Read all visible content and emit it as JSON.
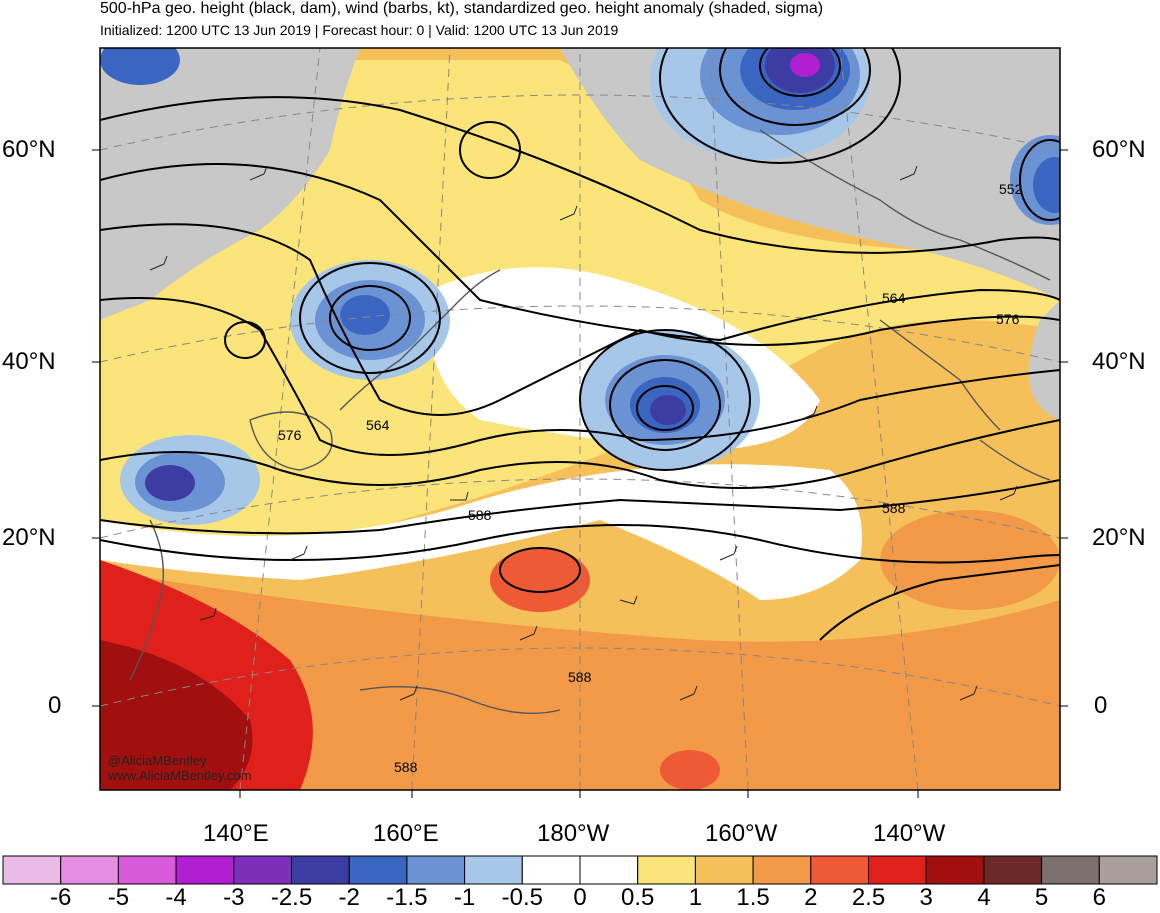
{
  "header": {
    "title": "500-hPa geo. height (black, dam), wind (barbs, kt), standardized geo. height anomaly (shaded, sigma)",
    "subtitle": "Initialized: 1200 UTC 13 Jun 2019 | Forecast hour: 0 | Valid: 1200 UTC 13 Jun 2019"
  },
  "map": {
    "lat_labels": [
      "60°N",
      "40°N",
      "20°N",
      "0"
    ],
    "lon_labels": [
      "140°E",
      "160°E",
      "180°W",
      "160°W",
      "140°W"
    ],
    "contour_labels": [
      "552",
      "564",
      "576",
      "564",
      "576",
      "588",
      "588",
      "588",
      "588"
    ],
    "credit": {
      "handle": "@AliciaMBentley",
      "website": "www.AliciaMBentley.com"
    }
  },
  "colorbar": {
    "labels": [
      "-6",
      "-5",
      "-4",
      "-3",
      "-2.5",
      "-2",
      "-1.5",
      "-1",
      "-0.5",
      "0",
      "0.5",
      "1",
      "1.5",
      "2",
      "2.5",
      "3",
      "4",
      "5",
      "6"
    ],
    "colors": [
      "#ebbbe8",
      "#e58de0",
      "#d75ad8",
      "#b21fd2",
      "#7b2fba",
      "#3d3ca3",
      "#3a66c2",
      "#6b93d3",
      "#a6c7e7",
      "#ffffff",
      "#ffffff",
      "#fbe47a",
      "#f5c05a",
      "#f29a48",
      "#ee5a35",
      "#e0211b",
      "#a10f0f",
      "#6b2a27",
      "#7d7170",
      "#a89f9c"
    ]
  }
}
